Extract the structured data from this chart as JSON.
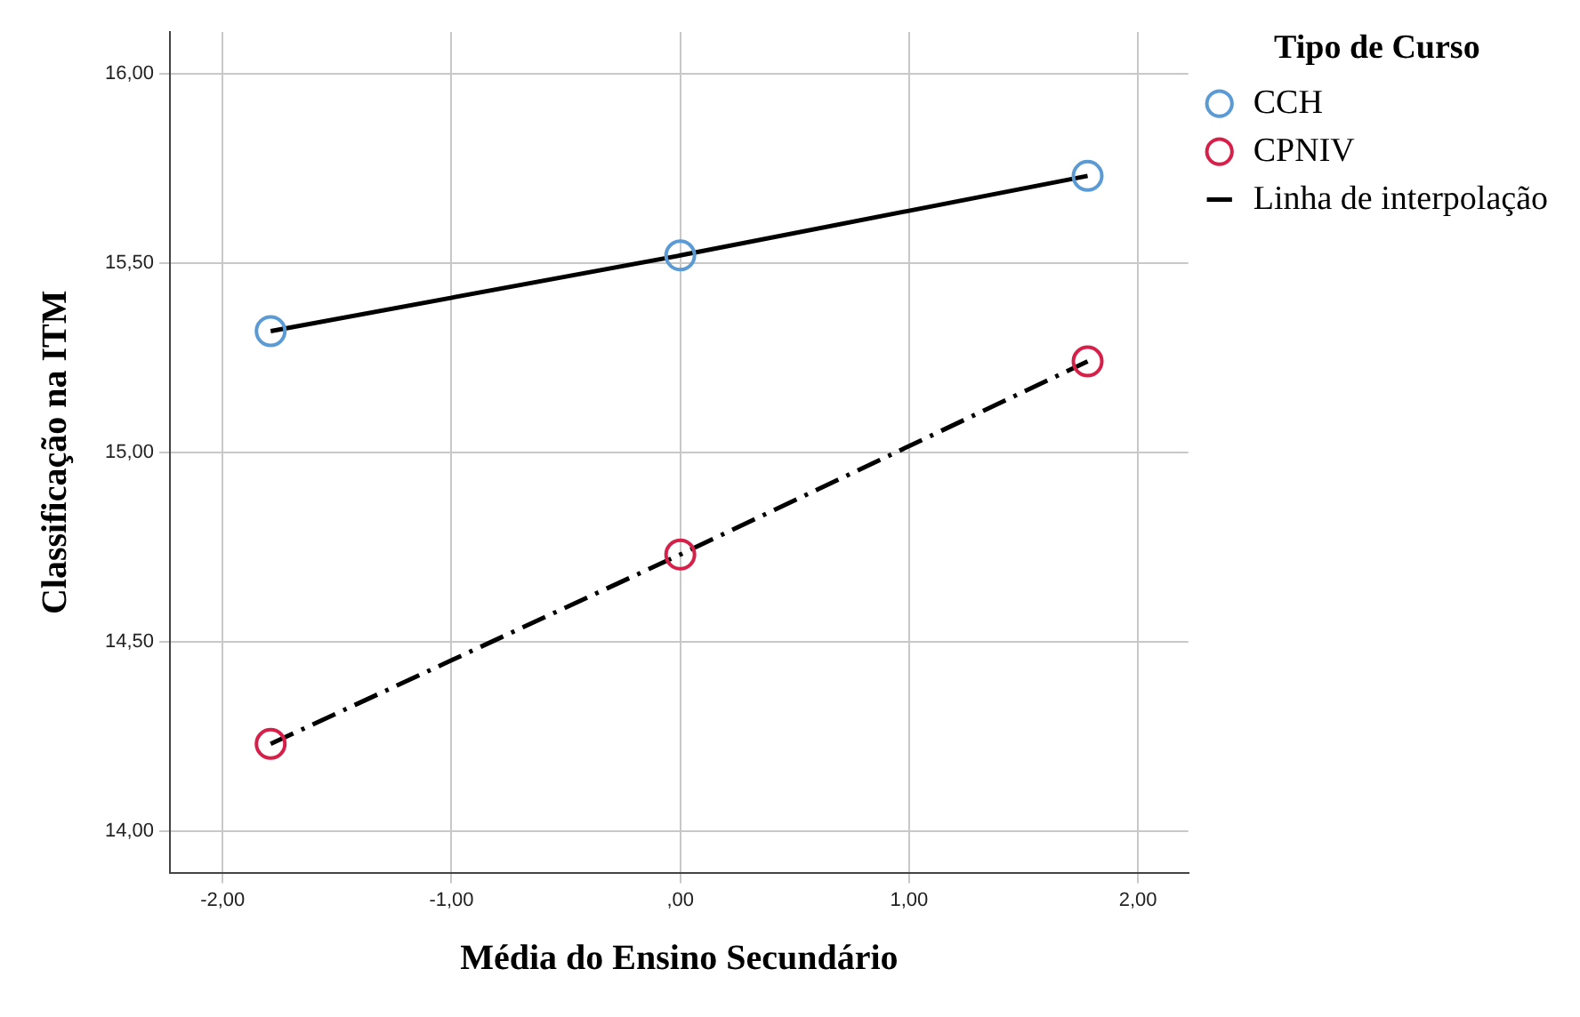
{
  "chart_data": {
    "type": "scatter",
    "xlabel": "Média do Ensino Secundário",
    "ylabel": "Classificação na ITM",
    "legend_title": "Tipo de Curso",
    "legend": "right",
    "grid": true,
    "marker": "circle",
    "xlim": [
      -2.23,
      2.22
    ],
    "ylim": [
      13.89,
      16.11
    ],
    "xticks": [
      {
        "value": -2,
        "label": "-2,00"
      },
      {
        "value": -1,
        "label": "-1,00"
      },
      {
        "value": 0,
        "label": ",00"
      },
      {
        "value": 1,
        "label": "1,00"
      },
      {
        "value": 2,
        "label": "2,00"
      }
    ],
    "yticks": [
      {
        "value": 14,
        "label": "14,00"
      },
      {
        "value": 14.5,
        "label": "14,50"
      },
      {
        "value": 15,
        "label": "15,00"
      },
      {
        "value": 15.5,
        "label": "15,50"
      },
      {
        "value": 16,
        "label": "16,00"
      }
    ],
    "series": [
      {
        "name": "CCH",
        "color": "#5b9bd5",
        "x": [
          -1.79,
          0,
          1.78
        ],
        "values": [
          15.32,
          15.52,
          15.73
        ]
      },
      {
        "name": "CPNIV",
        "color": "#d6204a",
        "x": [
          -1.79,
          0,
          1.78
        ],
        "values": [
          14.23,
          14.73,
          15.24
        ]
      },
      {
        "name": "Linha de interpolação",
        "type": "line",
        "color": "#000000",
        "line_style": "solid",
        "marker": "none",
        "x": [
          -1.79,
          0,
          1.78
        ],
        "values": [
          15.32,
          15.52,
          15.73
        ]
      },
      {
        "type": "line",
        "color": "#000000",
        "line_style": "dashed",
        "marker": "none",
        "x": [
          -1.79,
          0,
          1.78
        ],
        "values": [
          14.23,
          14.73,
          15.24
        ]
      }
    ]
  }
}
